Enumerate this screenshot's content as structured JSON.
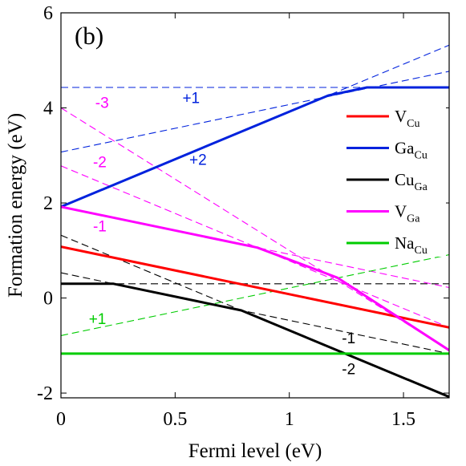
{
  "chart_data": {
    "type": "line",
    "panel_label": "(b)",
    "xlabel": "Fermi level (eV)",
    "ylabel": "Formation energy (eV)",
    "xlim": [
      0,
      1.7
    ],
    "ylim": [
      -2.1,
      6
    ],
    "xticks": [
      0,
      0.5,
      1,
      1.5
    ],
    "xtick_labels": [
      "0",
      "0.5",
      "1",
      "1.5"
    ],
    "yticks": [
      -2,
      0,
      2,
      4,
      6
    ],
    "ytick_labels": [
      "-2",
      "0",
      "2",
      "4",
      "6"
    ],
    "grid": false,
    "legend_position": "right",
    "colors": {
      "V_Cu": "#ff0000",
      "Ga_Cu": "#0022dd",
      "Cu_Ga": "#000000",
      "V_Ga": "#ff00ff",
      "Na_Cu": "#00cc00"
    },
    "series": [
      {
        "name": "V_Cu",
        "legend_main": "V",
        "legend_sub": "Cu",
        "color": "#ff0000",
        "solid": [
          [
            0,
            1.08
          ],
          [
            1.7,
            -0.62
          ]
        ],
        "dashed": []
      },
      {
        "name": "Ga_Cu",
        "legend_main": "Ga",
        "legend_sub": "Cu",
        "color": "#0022dd",
        "solid": [
          [
            0,
            1.92
          ],
          [
            1.17,
            4.26
          ],
          [
            1.34,
            4.43
          ],
          [
            1.7,
            4.43
          ]
        ],
        "dashed": [
          [
            [
              0,
              4.43
            ],
            [
              1.7,
              4.43
            ]
          ],
          [
            [
              0,
              3.07
            ],
            [
              1.7,
              4.77
            ]
          ],
          [
            [
              0,
              1.92
            ],
            [
              1.7,
              5.32
            ]
          ]
        ]
      },
      {
        "name": "Cu_Ga",
        "legend_main": "Cu",
        "legend_sub": "Ga",
        "color": "#000000",
        "solid": [
          [
            0,
            0.3
          ],
          [
            0.23,
            0.3
          ],
          [
            0.79,
            -0.26
          ],
          [
            1.7,
            -2.08
          ]
        ],
        "dashed": [
          [
            [
              0,
              0.3
            ],
            [
              1.7,
              0.3
            ]
          ],
          [
            [
              0,
              0.53
            ],
            [
              1.7,
              -1.17
            ]
          ],
          [
            [
              0,
              1.32
            ],
            [
              1.7,
              -2.08
            ]
          ]
        ]
      },
      {
        "name": "V_Ga",
        "legend_main": "V",
        "legend_sub": "Ga",
        "color": "#ff00ff",
        "solid": [
          [
            0,
            1.92
          ],
          [
            0.86,
            1.06
          ],
          [
            1.21,
            0.43
          ],
          [
            1.7,
            -1.1
          ]
        ],
        "dashed": [
          [
            [
              0,
              1.92
            ],
            [
              1.7,
              0.22
            ]
          ],
          [
            [
              0,
              2.78
            ],
            [
              1.7,
              -0.62
            ]
          ],
          [
            [
              0,
              4.0
            ],
            [
              1.7,
              -1.1
            ]
          ]
        ]
      },
      {
        "name": "Na_Cu",
        "legend_main": "Na",
        "legend_sub": "Cu",
        "color": "#00cc00",
        "solid": [
          [
            0,
            -1.17
          ],
          [
            1.7,
            -1.17
          ]
        ],
        "dashed": [
          [
            [
              0,
              -0.79
            ],
            [
              1.7,
              0.91
            ]
          ]
        ]
      }
    ],
    "annotations": [
      {
        "text": "+1",
        "x": 0.57,
        "y": 4.1,
        "color": "#0022dd"
      },
      {
        "text": "+2",
        "x": 0.6,
        "y": 2.8,
        "color": "#0022dd"
      },
      {
        "text": "-3",
        "x": 0.18,
        "y": 4.0,
        "color": "#ff00ff"
      },
      {
        "text": "-2",
        "x": 0.17,
        "y": 2.75,
        "color": "#ff00ff"
      },
      {
        "text": "-1",
        "x": 0.17,
        "y": 1.4,
        "color": "#ff00ff"
      },
      {
        "text": "+1",
        "x": 0.16,
        "y": -0.55,
        "color": "#00cc00"
      },
      {
        "text": "-1",
        "x": 1.26,
        "y": -0.95,
        "color": "#000000"
      },
      {
        "text": "-2",
        "x": 1.26,
        "y": -1.6,
        "color": "#000000"
      }
    ]
  }
}
